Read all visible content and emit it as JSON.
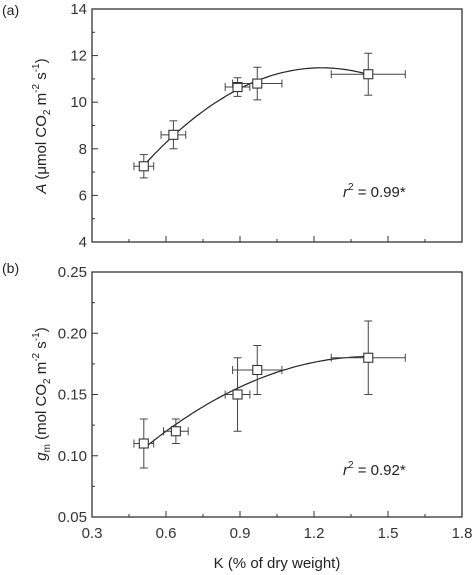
{
  "chart_data": [
    {
      "type": "scatter",
      "panel_label": "(a)",
      "ylabel": {
        "main": "A",
        "unit_open": "(μmol CO",
        "sub1": "2",
        "mid": " m",
        "sup1": "-2",
        "mid2": " s",
        "sup2": "-1",
        "close": ")"
      },
      "xlim": [
        0.3,
        1.8
      ],
      "ylim": [
        4,
        14
      ],
      "xticks": [
        "0.3",
        "0.6",
        "0.9",
        "1.2",
        "1.5",
        "1.8"
      ],
      "yticks": [
        "4",
        "6",
        "8",
        "10",
        "12",
        "14"
      ],
      "points": [
        {
          "x": 0.51,
          "y": 7.25,
          "xerr": 0.04,
          "yerr": 0.5
        },
        {
          "x": 0.63,
          "y": 8.6,
          "xerr": 0.05,
          "yerr": 0.6
        },
        {
          "x": 0.89,
          "y": 10.65,
          "xerr": 0.05,
          "yerr": 0.4
        },
        {
          "x": 0.97,
          "y": 10.8,
          "xerr": 0.1,
          "yerr": 0.7
        },
        {
          "x": 1.42,
          "y": 11.2,
          "xerr": 0.15,
          "yerr": 0.9
        }
      ],
      "fit_range": [
        0.51,
        1.42
      ],
      "annotation": {
        "r": "r",
        "sup": "2",
        "text": " = 0.99*"
      }
    },
    {
      "type": "scatter",
      "panel_label": "(b)",
      "ylabel": {
        "main": "g",
        "sub_main": "m",
        "unit_open": " (mol CO",
        "sub1": "2",
        "mid": " m",
        "sup1": "-2",
        "mid2": " s",
        "sup2": "-1",
        "close": ")"
      },
      "xlabel": "K (% of dry weight)",
      "xlim": [
        0.3,
        1.8
      ],
      "ylim": [
        0.05,
        0.25
      ],
      "xticks": [
        "0.3",
        "0.6",
        "0.9",
        "1.2",
        "1.5",
        "1.8"
      ],
      "yticks": [
        "0.05",
        "0.10",
        "0.15",
        "0.20",
        "0.25"
      ],
      "points": [
        {
          "x": 0.51,
          "y": 0.11,
          "xerr": 0.04,
          "yerr": 0.02
        },
        {
          "x": 0.64,
          "y": 0.12,
          "xerr": 0.05,
          "yerr": 0.01
        },
        {
          "x": 0.89,
          "y": 0.15,
          "xerr": 0.05,
          "yerr": 0.03
        },
        {
          "x": 0.97,
          "y": 0.17,
          "xerr": 0.1,
          "yerr": 0.02
        },
        {
          "x": 1.42,
          "y": 0.18,
          "xerr": 0.15,
          "yerr": 0.03
        }
      ],
      "fit_range": [
        0.51,
        1.42
      ],
      "annotation": {
        "r": "r",
        "sup": "2",
        "text": " = 0.92*"
      }
    }
  ]
}
